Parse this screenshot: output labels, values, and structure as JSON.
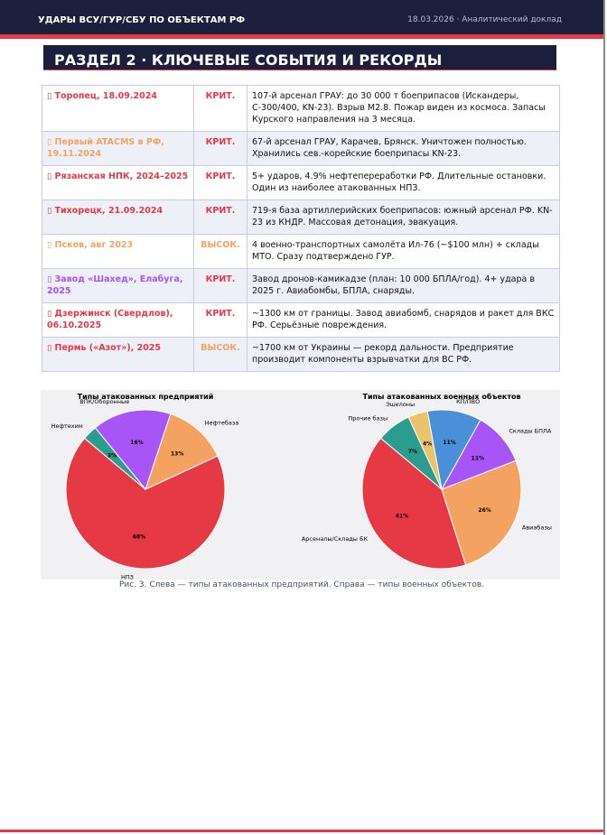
{
  "header": {
    "title": "УДАРЫ ВСУ/ГУР/СБУ ПО ОБЪЕКТАМ РФ",
    "meta": "18.03.2026 · Аналитический доклад"
  },
  "section_title": "РАЗДЕЛ 2 · КЛЮЧЕВЫЕ СОБЫТИЯ И РЕКОРДЫ",
  "table": {
    "rows": [
      {
        "event": "▯ Торопец, 18.09.2024",
        "level": "КРИТ.",
        "color": "#e63946",
        "description": "107-й арсенал ГРАУ: до 30 000 т боеприпасов (Искандеры, С-300/400, KN-23). Взрыв M2.8. Пожар виден из космоса. Запасы Курского направления на 3 месяца."
      },
      {
        "event": "▯ Первый ATACMS в РФ, 19.11.2024",
        "level": "КРИТ.",
        "color": "#f4a261",
        "description": "67-й арсенал ГРАУ, Карачев, Брянск. Уничтожен полностью. Хранились сев.-корейские боеприпасы KN-23."
      },
      {
        "event": "▯ Рязанская НПК, 2024–2025",
        "level": "КРИТ.",
        "color": "#e63946",
        "description": "5+ ударов, 4.9% нефтепереработки РФ. Длительные остановки. Один из наиболее атакованных НПЗ."
      },
      {
        "event": "▯ Тихорецк, 21.09.2024",
        "level": "КРИТ.",
        "color": "#e63946",
        "description": "719-я база артиллерийских боеприпасов: южный арсенал РФ. KN-23 из КНДР. Массовая детонация, эвакуация."
      },
      {
        "event": "▯ Псков, авг 2023",
        "level": "ВЫСОК.",
        "color": "#f4a261",
        "description": "4 военно-транспортных самолёта Ил-76 (~$100 млн) + склады МТО. Сразу подтверждено ГУР."
      },
      {
        "event": "▯ Завод «Шахед», Елабуга, 2025",
        "level": "КРИТ.",
        "color": "#a855f7",
        "description": "Завод дронов-камикадзе (план: 10 000 БПЛА/год). 4+ удара в 2025 г. Авиабомбы, БПЛА, снаряды."
      },
      {
        "event": "▯ Дзержинск (Свердлов), 06.10.2025",
        "level": "КРИТ.",
        "color": "#e63946",
        "description": "~1300 км от границы. Завод авиабомб, снарядов и ракет для ВКС РФ. Серьёзные повреждения."
      },
      {
        "event": "▯ Пермь («Азот»), 2025",
        "level": "ВЫСОК.",
        "color": "#e63946",
        "description": "~1700 км от Украины — рекорд дальности. Предприятие производит компоненты взрывчатки для ВС РФ."
      }
    ]
  },
  "chart_data": [
    {
      "type": "pie",
      "title": "Типы атакованных предприятий",
      "categories": [
        "НПЗ",
        "Нефтебаза",
        "ВПК/Оборонные",
        "Нефтехим"
      ],
      "values": [
        68,
        13,
        16,
        3
      ],
      "value_labels": [
        "68%",
        "13%",
        "16%",
        "3%"
      ],
      "colors": [
        "#e63946",
        "#f4a261",
        "#a855f7",
        "#2a9d8f"
      ]
    },
    {
      "type": "pie",
      "title": "Типы атакованных военных объектов",
      "categories": [
        "Арсеналы/Склады БК",
        "Авиабазы",
        "Склады БПЛА",
        "КП/ПВО",
        "Эшелоны",
        "Прочие базы"
      ],
      "values": [
        41,
        26,
        11,
        11,
        4,
        7
      ],
      "value_labels": [
        "41%",
        "26%",
        "11%",
        "11%",
        "4%",
        "7%"
      ],
      "colors": [
        "#e63946",
        "#f4a261",
        "#a855f7",
        "#4a90d9",
        "#e9c46a",
        "#2a9d8f"
      ]
    }
  ],
  "caption": "Рис. 3. Слева — типы атакованных предприятий. Справа — типы военных объектов."
}
